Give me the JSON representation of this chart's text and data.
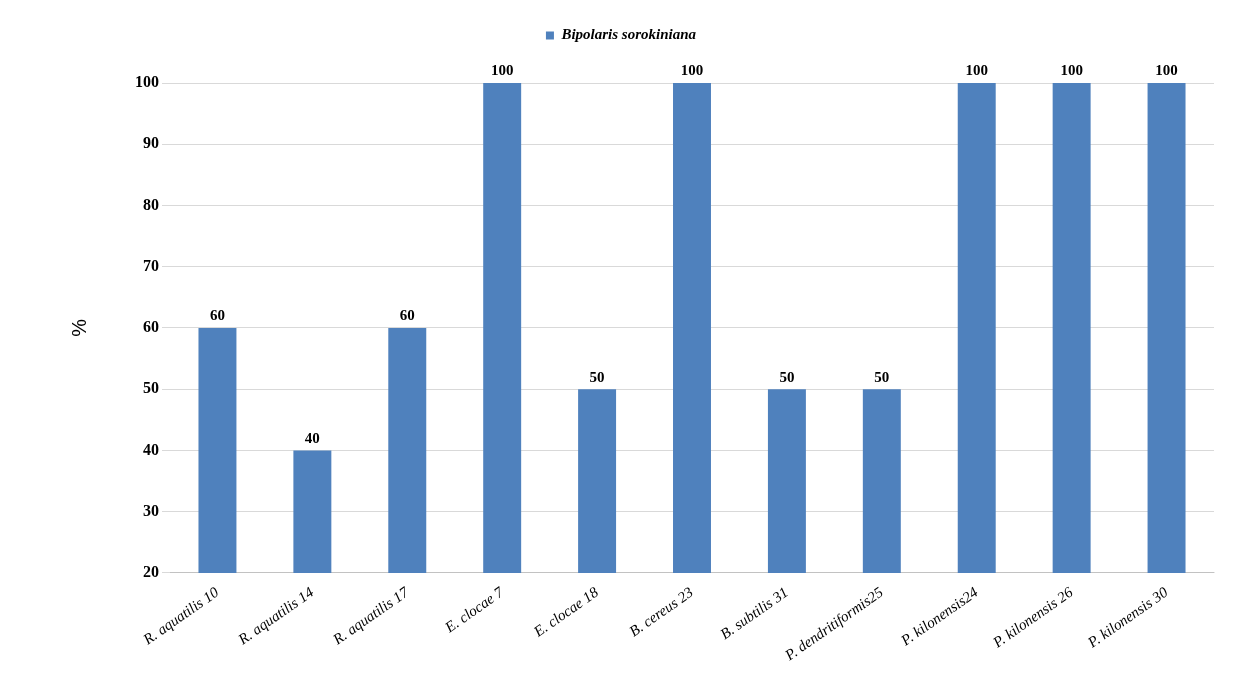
{
  "chart_data": {
    "type": "bar",
    "ylabel": "%",
    "categories": [
      "R. aquatilis 10",
      "R. aquatilis 14",
      "R. aquatilis 17",
      "E. clocae 7",
      "E. clocae 18",
      "B. cereus 23",
      "B. subtilis 31",
      "P. dendritiformis25",
      "P. kilonensis24",
      "P. kilonensis 26",
      "P. kilonensis 30"
    ],
    "series": [
      {
        "name": "Bipolaris sorokiniana",
        "color": "#4f81bd",
        "values": [
          60,
          40,
          60,
          100,
          50,
          100,
          50,
          50,
          100,
          100,
          100
        ]
      }
    ],
    "ylim": [
      20,
      100
    ],
    "yticks": [
      20,
      30,
      40,
      50,
      60,
      70,
      80,
      90,
      100
    ],
    "grid": "y",
    "legend": "top",
    "data_labels": true
  }
}
